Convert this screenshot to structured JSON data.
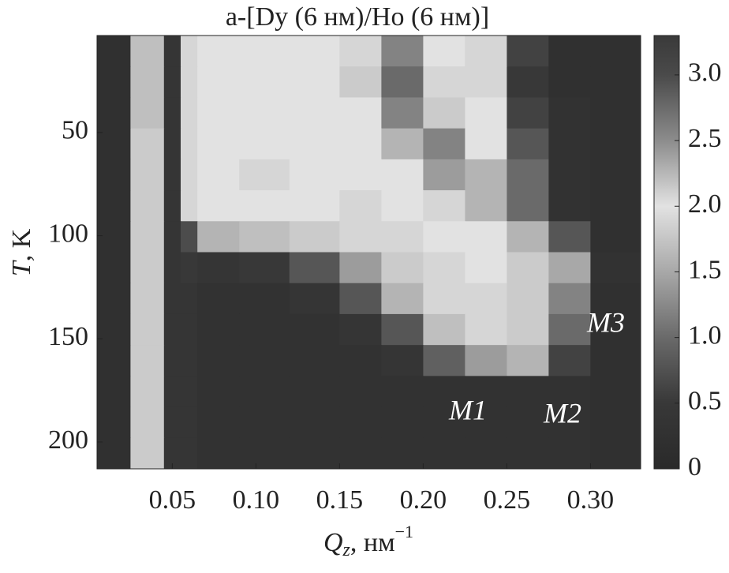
{
  "chart_data": {
    "type": "heatmap",
    "title": "a-[Dy (6 нм)/Ho (6 нм)]",
    "xlabel": {
      "symbol": "Q",
      "subscript": "z",
      "unit": ", нм",
      "superscript": "−1"
    },
    "ylabel": {
      "symbol": "T",
      "unit": ", K"
    },
    "xlim": [
      0.005,
      0.33
    ],
    "ylim": [
      3,
      213
    ],
    "yreverse": true,
    "xticks": [
      0.05,
      {
        "value": 0.1,
        "label": "0.10"
      },
      0.15,
      {
        "value": 0.2,
        "label": "0.20"
      },
      0.25,
      {
        "value": 0.3,
        "label": "0.30"
      }
    ],
    "yticks": [
      50,
      100,
      150,
      200
    ],
    "xbins": [
      0.005,
      0.025,
      0.045,
      0.055,
      0.065,
      0.09,
      0.12,
      0.15,
      0.175,
      0.2,
      0.225,
      0.25,
      0.275,
      0.3,
      0.33
    ],
    "ybins": [
      3,
      18,
      33,
      48,
      63,
      78,
      93,
      108,
      123,
      138,
      153,
      168,
      183,
      198,
      213
    ],
    "values": [
      [
        0.2,
        1.7,
        0.4,
        1.9,
        2.0,
        2.0,
        2.0,
        1.9,
        1.2,
        2.0,
        1.9,
        0.6,
        0.2,
        0.2
      ],
      [
        0.2,
        1.7,
        0.4,
        1.9,
        2.0,
        2.0,
        2.0,
        1.8,
        1.0,
        1.9,
        1.9,
        0.5,
        0.2,
        0.2
      ],
      [
        0.2,
        1.7,
        0.4,
        1.9,
        2.0,
        2.0,
        2.0,
        2.0,
        1.2,
        1.8,
        2.0,
        0.6,
        0.3,
        0.2
      ],
      [
        0.2,
        1.8,
        0.4,
        1.9,
        2.0,
        2.0,
        2.0,
        2.0,
        1.6,
        1.2,
        2.0,
        0.8,
        0.3,
        0.2
      ],
      [
        0.2,
        1.8,
        0.4,
        1.9,
        2.0,
        1.9,
        2.0,
        2.0,
        2.0,
        1.4,
        1.6,
        1.0,
        0.3,
        0.2
      ],
      [
        0.2,
        1.8,
        0.4,
        1.9,
        2.0,
        2.0,
        2.0,
        1.9,
        2.0,
        1.9,
        1.6,
        1.0,
        0.3,
        0.2
      ],
      [
        0.2,
        1.8,
        0.4,
        0.7,
        1.6,
        1.7,
        1.8,
        1.9,
        1.9,
        2.0,
        2.0,
        1.6,
        0.8,
        0.2
      ],
      [
        0.2,
        1.8,
        0.4,
        0.5,
        0.4,
        0.5,
        0.8,
        1.4,
        1.8,
        1.9,
        2.0,
        1.8,
        1.5,
        0.3
      ],
      [
        0.2,
        1.8,
        0.4,
        0.4,
        0.3,
        0.3,
        0.4,
        0.8,
        1.6,
        1.9,
        1.9,
        1.8,
        1.2,
        0.2
      ],
      [
        0.2,
        1.8,
        0.4,
        0.4,
        0.3,
        0.3,
        0.3,
        0.4,
        0.8,
        1.7,
        1.9,
        1.8,
        1.0,
        0.2
      ],
      [
        0.2,
        1.8,
        0.4,
        0.4,
        0.3,
        0.3,
        0.3,
        0.3,
        0.4,
        0.9,
        1.4,
        1.6,
        0.6,
        0.2
      ],
      [
        0.2,
        1.8,
        0.4,
        0.4,
        0.3,
        0.3,
        0.3,
        0.3,
        0.3,
        0.3,
        0.3,
        0.3,
        0.3,
        0.2
      ],
      [
        0.2,
        1.8,
        0.4,
        0.4,
        0.3,
        0.3,
        0.3,
        0.3,
        0.3,
        0.3,
        0.3,
        0.3,
        0.3,
        0.2
      ],
      [
        0.2,
        1.8,
        0.4,
        0.4,
        0.3,
        0.3,
        0.3,
        0.3,
        0.3,
        0.3,
        0.3,
        0.3,
        0.3,
        0.2
      ]
    ],
    "clim": [
      0,
      3.3
    ],
    "cticks": [
      0,
      0.5,
      {
        "value": 1,
        "label": "1.0"
      },
      1.5,
      {
        "value": 2,
        "label": "2.0"
      },
      2.5,
      {
        "value": 3,
        "label": "3.0"
      }
    ],
    "colormap": [
      {
        "value": 0,
        "color": "#2a2a2a"
      },
      {
        "value": 0.5,
        "color": "#383838"
      },
      {
        "value": 1,
        "color": "#6a6a6a"
      },
      {
        "value": 1.5,
        "color": "#a8a8a8"
      },
      {
        "value": 2,
        "color": "#e2e2e2"
      },
      {
        "value": 2.5,
        "color": "#8c8c8c"
      },
      {
        "value": 3,
        "color": "#4a4a4a"
      },
      {
        "value": 3.3,
        "color": "#3a3a3a"
      }
    ],
    "annotations": [
      "M1",
      "M2",
      "M3"
    ]
  }
}
